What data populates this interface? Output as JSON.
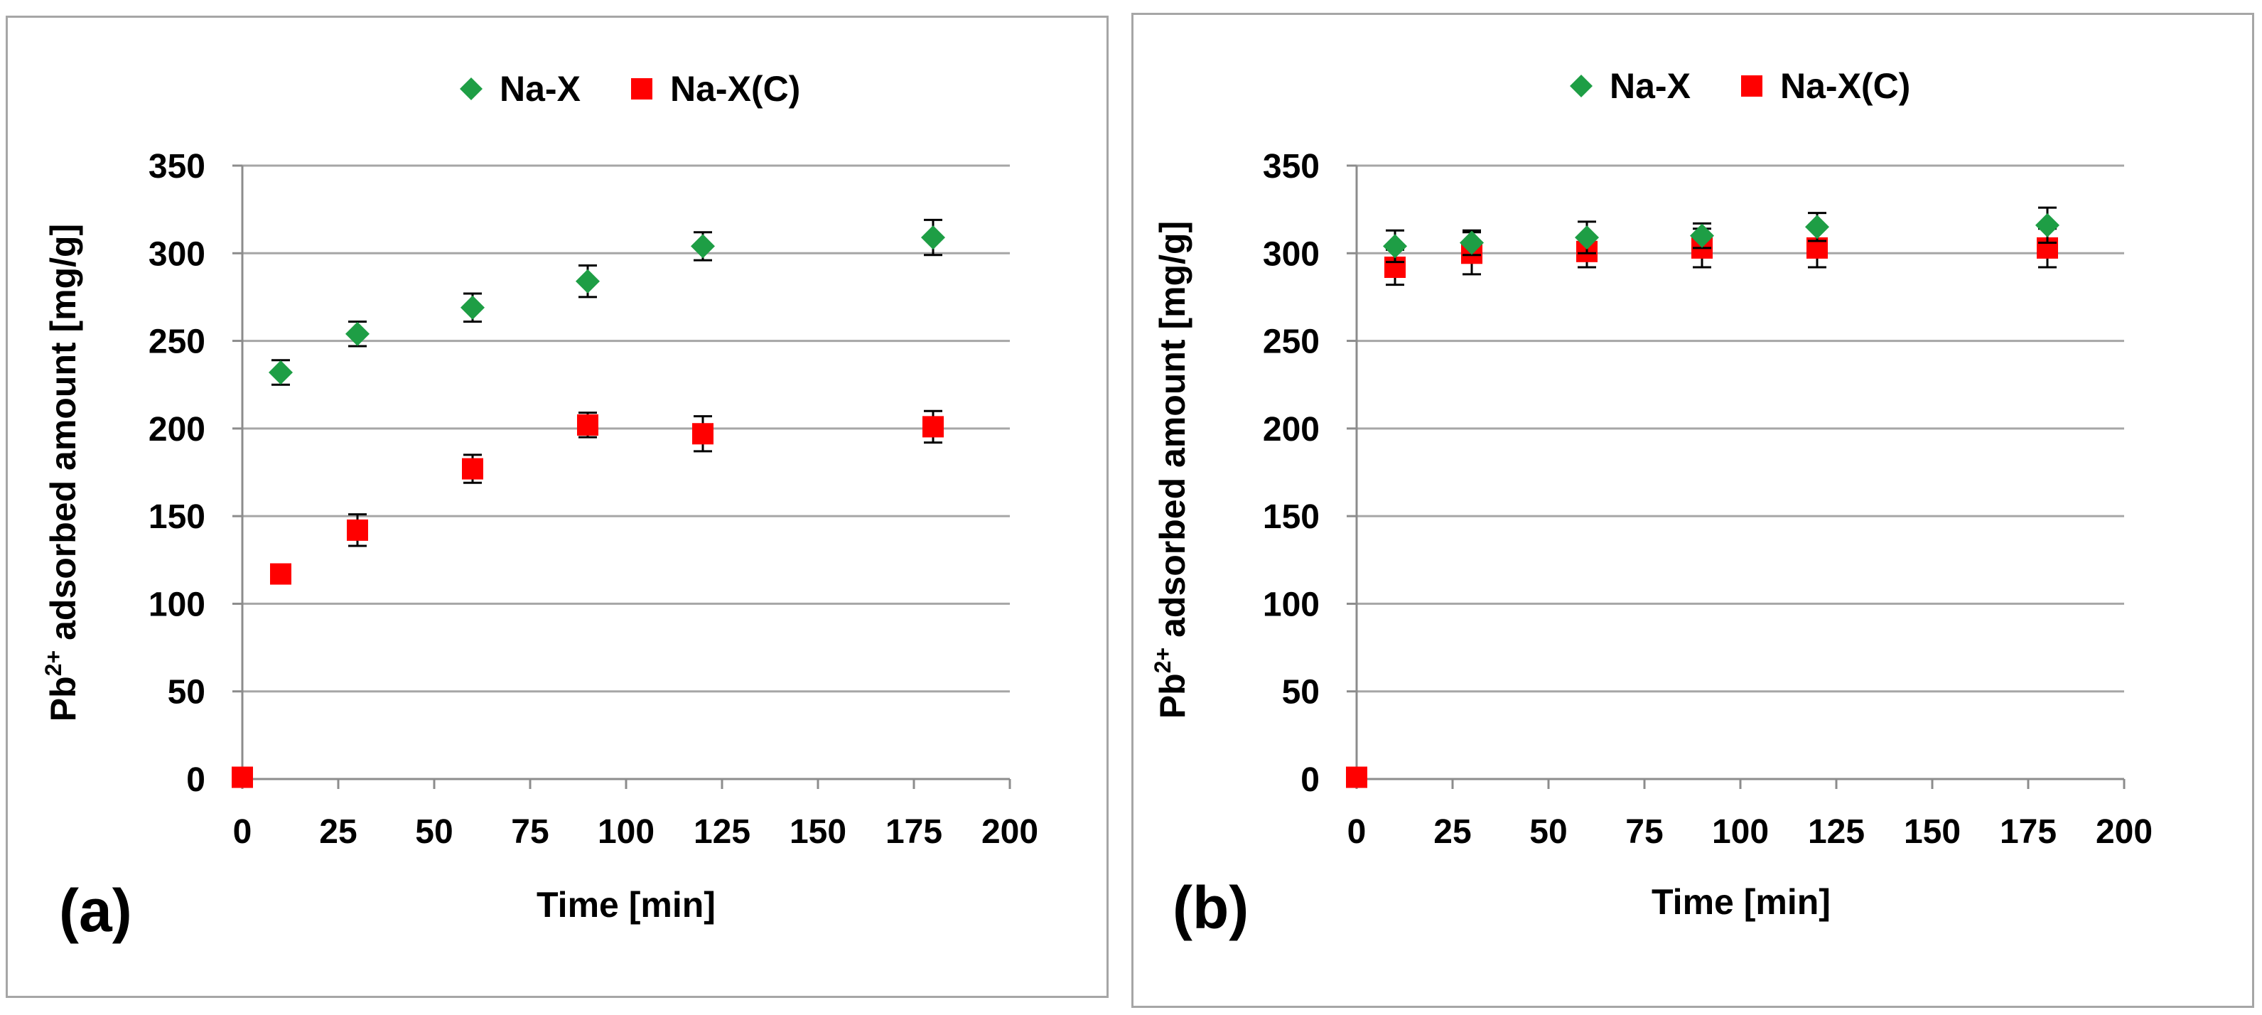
{
  "colors": {
    "naX": "#1e9e45",
    "naXC": "#ff0000",
    "grid": "#a6a6a6",
    "axis": "#8c8c8c",
    "text": "#000000",
    "errorbar": "#000000"
  },
  "chart_data": [
    {
      "type": "scatter",
      "panel_label": "(a)",
      "xlabel": "Time [min]",
      "ylabel_prefix": "Pb",
      "ylabel_superscript": "2+",
      "ylabel_suffix": " adsorbed amount [mg/g]",
      "xlim": [
        0,
        200
      ],
      "ylim": [
        0,
        350
      ],
      "x_ticks": [
        0,
        25,
        50,
        75,
        100,
        125,
        150,
        175,
        200
      ],
      "y_ticks": [
        0,
        50,
        100,
        150,
        200,
        250,
        300,
        350
      ],
      "grid": "horizontal",
      "legend_position": "top-center",
      "series": [
        {
          "name": "Na-X",
          "marker": "diamond",
          "color": "#1e9e45",
          "x": [
            10,
            30,
            60,
            90,
            120,
            180
          ],
          "y": [
            232,
            254,
            269,
            284,
            304,
            309
          ],
          "err": [
            7,
            7,
            8,
            9,
            8,
            10
          ]
        },
        {
          "name": "Na-X(C)",
          "marker": "square",
          "color": "#ff0000",
          "x": [
            0,
            10,
            30,
            60,
            90,
            120,
            180
          ],
          "y": [
            1,
            117,
            142,
            177,
            202,
            197,
            201
          ],
          "err": [
            0,
            5,
            9,
            8,
            7,
            10,
            9
          ]
        }
      ]
    },
    {
      "type": "scatter",
      "panel_label": "(b)",
      "xlabel": "Time [min]",
      "ylabel_prefix": "Pb",
      "ylabel_superscript": "2+",
      "ylabel_suffix": " adsorbed amount [mg/g]",
      "xlim": [
        0,
        200
      ],
      "ylim": [
        0,
        350
      ],
      "x_ticks": [
        0,
        25,
        50,
        75,
        100,
        125,
        150,
        175,
        200
      ],
      "y_ticks": [
        0,
        50,
        100,
        150,
        200,
        250,
        300,
        350
      ],
      "grid": "horizontal",
      "legend_position": "top-center",
      "series": [
        {
          "name": "Na-X",
          "marker": "diamond",
          "color": "#1e9e45",
          "x": [
            10,
            30,
            60,
            90,
            120,
            180
          ],
          "y": [
            304,
            306,
            309,
            310,
            315,
            316
          ],
          "err": [
            9,
            7,
            9,
            7,
            8,
            10
          ]
        },
        {
          "name": "Na-X(C)",
          "marker": "square",
          "color": "#ff0000",
          "x": [
            0,
            10,
            30,
            60,
            90,
            120,
            180
          ],
          "y": [
            1,
            292,
            300,
            301,
            303,
            303,
            303
          ],
          "err": [
            0,
            10,
            12,
            9,
            11,
            11,
            11
          ]
        }
      ]
    }
  ]
}
